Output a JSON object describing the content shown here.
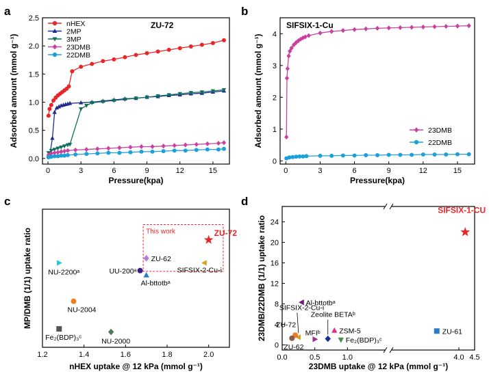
{
  "chart_data": [
    {
      "type": "line",
      "panel_label": "a",
      "title": "ZU-72",
      "xlabel": "Pressure(kpa)",
      "ylabel": "Adsorbed amount (mmol g⁻¹)",
      "xlim": [
        -0.5,
        16.5
      ],
      "ylim": [
        -0.1,
        2.5
      ],
      "xticks": [
        0,
        3,
        6,
        9,
        12,
        15
      ],
      "yticks": [
        0.0,
        0.5,
        1.0,
        1.5,
        2.0,
        2.5
      ],
      "legend_position": "top-left",
      "series": [
        {
          "name": "nHEX",
          "color": "#e8262a",
          "marker": "circle",
          "x": [
            0.05,
            0.15,
            0.3,
            0.5,
            0.7,
            0.9,
            1.1,
            1.3,
            1.5,
            1.7,
            1.9,
            2.2,
            3.0,
            4.0,
            5.0,
            6.0,
            7.0,
            8.0,
            9.0,
            10.0,
            11.0,
            12.0,
            13.0,
            14.0,
            15.0,
            16.0
          ],
          "y": [
            0.76,
            0.88,
            0.95,
            1.03,
            1.08,
            1.12,
            1.15,
            1.18,
            1.21,
            1.24,
            1.28,
            1.55,
            1.63,
            1.68,
            1.73,
            1.76,
            1.8,
            1.84,
            1.87,
            1.9,
            1.93,
            1.96,
            1.99,
            2.02,
            2.05,
            2.1
          ]
        },
        {
          "name": "2MP",
          "color": "#1c2b8e",
          "marker": "triangle",
          "x": [
            0.05,
            0.2,
            0.4,
            0.6,
            0.8,
            1.0,
            1.2,
            1.4,
            1.6,
            1.8,
            2.0,
            3.0,
            4.0,
            5.0,
            6.0,
            7.0,
            8.0,
            9.0,
            10.0,
            11.0,
            12.0,
            13.0,
            14.0,
            15.0,
            16.0
          ],
          "y": [
            0.06,
            0.1,
            0.36,
            0.82,
            0.9,
            0.92,
            0.94,
            0.95,
            0.96,
            0.97,
            0.98,
            0.99,
            1.0,
            1.02,
            1.04,
            1.06,
            1.07,
            1.09,
            1.1,
            1.12,
            1.13,
            1.15,
            1.16,
            1.18,
            1.2
          ]
        },
        {
          "name": "3MP",
          "color": "#0f6f5c",
          "marker": "triangle-down",
          "x": [
            0.05,
            0.3,
            0.6,
            0.9,
            1.2,
            1.5,
            1.8,
            2.0,
            3.0,
            3.5,
            4.0,
            5.0,
            6.0,
            7.0,
            8.0,
            9.0,
            10.0,
            11.0,
            12.0,
            13.0,
            14.0,
            15.0,
            16.0
          ],
          "y": [
            0.1,
            0.14,
            0.16,
            0.18,
            0.2,
            0.22,
            0.24,
            0.25,
            0.88,
            0.94,
            0.99,
            1.01,
            1.03,
            1.05,
            1.07,
            1.09,
            1.11,
            1.13,
            1.15,
            1.17,
            1.18,
            1.2,
            1.22
          ]
        },
        {
          "name": "23DMB",
          "color": "#c9409e",
          "marker": "diamond",
          "x": [
            0.05,
            0.3,
            0.6,
            0.9,
            1.2,
            1.5,
            1.8,
            2.5,
            3.5,
            4.5,
            5.5,
            6.5,
            7.5,
            8.5,
            9.5,
            10.5,
            11.5,
            12.5,
            13.5,
            14.5,
            15.5,
            16.0
          ],
          "y": [
            0.06,
            0.09,
            0.1,
            0.11,
            0.12,
            0.13,
            0.14,
            0.15,
            0.16,
            0.17,
            0.18,
            0.19,
            0.2,
            0.21,
            0.21,
            0.22,
            0.23,
            0.24,
            0.25,
            0.26,
            0.27,
            0.28
          ]
        },
        {
          "name": "22DMB",
          "color": "#1ba0dc",
          "marker": "circle",
          "x": [
            0.05,
            0.3,
            0.6,
            0.9,
            1.2,
            1.5,
            1.8,
            2.5,
            3.5,
            4.5,
            5.5,
            6.5,
            7.5,
            8.5,
            9.5,
            10.5,
            11.5,
            12.5,
            13.5,
            14.5,
            15.5,
            16.0
          ],
          "y": [
            0.02,
            0.03,
            0.04,
            0.04,
            0.05,
            0.05,
            0.06,
            0.07,
            0.08,
            0.09,
            0.1,
            0.1,
            0.11,
            0.12,
            0.12,
            0.13,
            0.14,
            0.14,
            0.15,
            0.16,
            0.16,
            0.17
          ]
        }
      ]
    },
    {
      "type": "line",
      "panel_label": "b",
      "title": "SIFSIX-1-Cu",
      "xlabel": "Pressure(kpa)",
      "ylabel": "Adsorbed amount (mmol g⁻¹)",
      "xlim": [
        -0.5,
        16.5
      ],
      "ylim": [
        -0.1,
        4.5
      ],
      "xticks": [
        0,
        3,
        6,
        9,
        12,
        15
      ],
      "yticks": [
        0,
        1,
        2,
        3,
        4
      ],
      "legend_position": "bottom-right",
      "series": [
        {
          "name": "23DMB",
          "color": "#c9409e",
          "marker": "diamond",
          "x": [
            0.05,
            0.1,
            0.15,
            0.25,
            0.35,
            0.5,
            0.7,
            0.9,
            1.1,
            1.3,
            1.5,
            1.7,
            2.0,
            3.0,
            4.0,
            5.0,
            6.0,
            7.0,
            8.0,
            9.0,
            10.0,
            11.0,
            12.0,
            13.0,
            14.0,
            15.0,
            16.0
          ],
          "y": [
            0.75,
            2.6,
            2.9,
            3.3,
            3.45,
            3.55,
            3.65,
            3.72,
            3.78,
            3.83,
            3.87,
            3.9,
            3.94,
            4.02,
            4.07,
            4.1,
            4.13,
            4.15,
            4.17,
            4.18,
            4.19,
            4.2,
            4.21,
            4.22,
            4.23,
            4.24,
            4.25
          ]
        },
        {
          "name": "22DMB",
          "color": "#1ba0dc",
          "marker": "circle",
          "x": [
            0.05,
            0.3,
            0.6,
            0.9,
            1.2,
            1.5,
            1.8,
            3.0,
            4.0,
            5.0,
            6.0,
            7.0,
            8.0,
            9.0,
            10.0,
            11.0,
            12.0,
            13.0,
            14.0,
            15.0,
            16.0
          ],
          "y": [
            0.08,
            0.11,
            0.12,
            0.13,
            0.14,
            0.14,
            0.15,
            0.16,
            0.16,
            0.17,
            0.17,
            0.18,
            0.18,
            0.19,
            0.19,
            0.19,
            0.2,
            0.2,
            0.2,
            0.21,
            0.21
          ]
        }
      ]
    },
    {
      "type": "scatter",
      "panel_label": "c",
      "title": "",
      "xlabel": "nHEX uptake @ 12 kPa (mmol g⁻¹)",
      "ylabel": "MP/DMB (1/1) uptake ratio",
      "xlim": [
        1.2,
        2.1
      ],
      "ylim": [
        0,
        9
      ],
      "xticks": [
        1.2,
        1.4,
        1.6,
        1.8,
        2.0
      ],
      "yticks": [],
      "box_label": "This work",
      "points": [
        {
          "label": "ZU-72",
          "x": 2.0,
          "y": 7.0,
          "color": "#e8262a",
          "marker": "star"
        },
        {
          "label": "ZU-62",
          "x": 1.7,
          "y": 5.8,
          "color": "#b07fd8",
          "marker": "diamond"
        },
        {
          "label": "SIFSIX-2-Cu-i",
          "x": 1.98,
          "y": 5.5,
          "color": "#d9a227",
          "marker": "triangle-left"
        },
        {
          "label": "UU-200ᵃ",
          "x": 1.67,
          "y": 5.0,
          "color": "#3f1d8a",
          "marker": "circle"
        },
        {
          "label": "Al-bttotbᵃ",
          "x": 1.7,
          "y": 4.7,
          "color": "#2b7bc8",
          "marker": "triangle"
        },
        {
          "label": "NU-2200ᵃ",
          "x": 1.28,
          "y": 5.5,
          "color": "#22c6d6",
          "marker": "triangle-right"
        },
        {
          "label": "NU-2004",
          "x": 1.35,
          "y": 3.0,
          "color": "#ef7b22",
          "marker": "circle"
        },
        {
          "label": "Fe₂(BDP)₃ᶜ",
          "x": 1.28,
          "y": 1.2,
          "color": "#555555",
          "marker": "square"
        },
        {
          "label": "NU-2000",
          "x": 1.53,
          "y": 1.0,
          "color": "#4c7a5c",
          "marker": "diamond"
        }
      ]
    },
    {
      "type": "scatter",
      "panel_label": "d",
      "title": "",
      "xlabel": "23DMB uptake @ 12 kPa (mmol g⁻¹)",
      "ylabel": "23DMB/22DMB (1/1) uptake ratio",
      "xlim": [
        0,
        4.5
      ],
      "ylim": [
        -1,
        27
      ],
      "xticks": [
        0.0,
        0.5,
        1.0,
        4.0,
        4.5
      ],
      "yticks": [
        0,
        4,
        8,
        12,
        16,
        20,
        24
      ],
      "axis_break": true,
      "points": [
        {
          "label": "SIFSIX-1-CU",
          "x": 4.2,
          "y": 22.0,
          "color": "#e8262a",
          "marker": "star"
        },
        {
          "label": "Al-bttotbᵃ",
          "x": 0.3,
          "y": 8.3,
          "color": "#6a1f7a",
          "marker": "triangle-left"
        },
        {
          "label": "SIFSIX-2-Cu-i",
          "x": 0.25,
          "y": 1.5,
          "color": "#d9a227",
          "marker": "triangle-left"
        },
        {
          "label": "Zeolite BETAᵇ",
          "x": 0.7,
          "y": 1.2,
          "color": "#1c2b8e",
          "marker": "diamond"
        },
        {
          "label": "ZSM-5",
          "x": 0.8,
          "y": 2.8,
          "color": "#d8357e",
          "marker": "triangle"
        },
        {
          "label": "MFIᵇ",
          "x": 0.5,
          "y": 1.1,
          "color": "#a02f8f",
          "marker": "triangle-right"
        },
        {
          "label": "ZU-72",
          "x": 0.2,
          "y": 1.9,
          "color": "#ef7b22",
          "marker": "circle"
        },
        {
          "label": "ZU-62",
          "x": 0.15,
          "y": 1.3,
          "color": "#8a5a4a",
          "marker": "circle"
        },
        {
          "label": "Fe₂(BDP)₃ᶜ",
          "x": 0.9,
          "y": 1.0,
          "color": "#4c8a5c",
          "marker": "triangle-down"
        },
        {
          "label": "ZU-61",
          "x": 3.3,
          "y": 2.7,
          "color": "#2b7bc8",
          "marker": "square"
        }
      ]
    }
  ]
}
